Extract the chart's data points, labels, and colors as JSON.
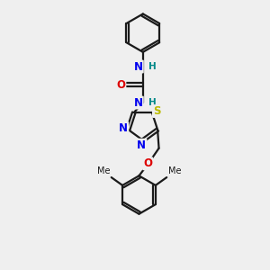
{
  "bg_color": "#efefef",
  "bond_color": "#1a1a1a",
  "bond_width": 1.6,
  "atom_colors": {
    "N": "#0000ee",
    "O": "#dd0000",
    "S": "#bbbb00",
    "H": "#008888",
    "C": "#1a1a1a"
  },
  "font_size_atom": 8.5,
  "font_size_H": 7.5,
  "font_size_me": 7.0
}
